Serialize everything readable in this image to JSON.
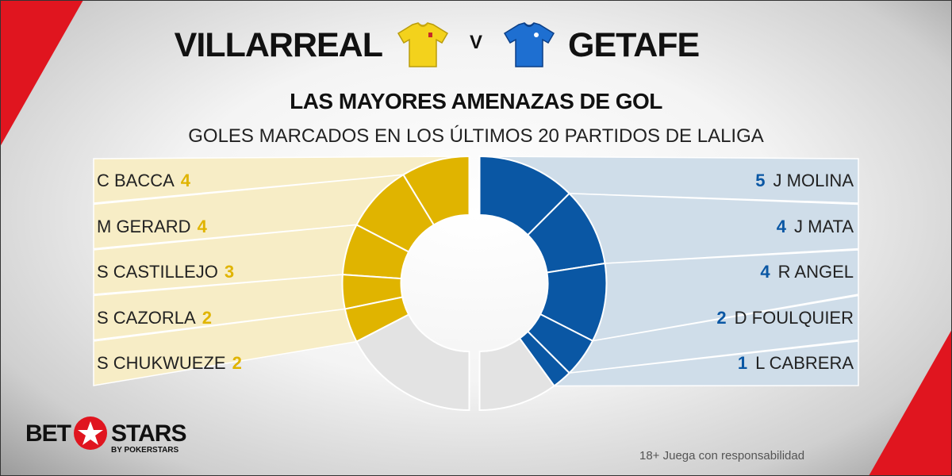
{
  "header": {
    "home_team": "VILLARREAL",
    "vs": "V",
    "away_team": "GETAFE"
  },
  "chart_data": {
    "type": "pie",
    "title": "LAS MAYORES AMENAZAS DE GOL",
    "subtitle": "GOLES MARCADOS EN LOS ÚLTIMOS 20 PARTIDOS DE LALIGA",
    "left": {
      "team": "VILLARREAL",
      "color": "#e0b400",
      "panel_color": "#f7edc6",
      "players": [
        {
          "name": "C BACCA",
          "goals": 4
        },
        {
          "name": "M GERARD",
          "goals": 4
        },
        {
          "name": "S CASTILLEJO",
          "goals": 3
        },
        {
          "name": "S CAZORLA",
          "goals": 2
        },
        {
          "name": "S CHUKWUEZE",
          "goals": 2
        }
      ],
      "others_goals": 8
    },
    "right": {
      "team": "GETAFE",
      "color": "#0a57a4",
      "panel_color": "#cfdde9",
      "players": [
        {
          "name": "J MOLINA",
          "goals": 5
        },
        {
          "name": "J MATA",
          "goals": 4
        },
        {
          "name": "R ANGEL",
          "goals": 4
        },
        {
          "name": "D FOULQUIER",
          "goals": 2
        },
        {
          "name": "L CABRERA",
          "goals": 1
        }
      ],
      "others_goals": 4
    },
    "others_color": "#e3e3e3"
  },
  "brand": {
    "bet": "BET",
    "stars": "STARS",
    "by": "BY POKERSTARS",
    "accent": "#e0151f"
  },
  "disclaimer": "18+ Juega con responsabilidad"
}
